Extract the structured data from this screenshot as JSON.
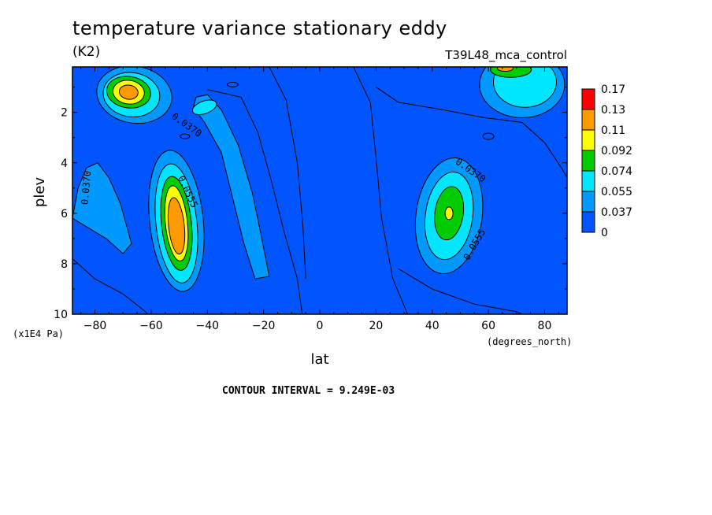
{
  "header": {
    "title": "temperature variance stationary eddy",
    "units": "(K2)",
    "dataset": "T39L48_mca_control"
  },
  "footer": {
    "contour_interval": "CONTOUR INTERVAL = 9.249E-03"
  },
  "colors": {
    "levels": [
      "#0055ff",
      "#0099ff",
      "#00e6ff",
      "#00cc00",
      "#ffff00",
      "#ff9900",
      "#ff0000"
    ],
    "background_fill": "#0055ff"
  },
  "chart_data": {
    "type": "heatmap",
    "title": "temperature variance stationary eddy",
    "xlabel": "lat",
    "xlabel_units": "(degrees_north)",
    "ylabel": "plev",
    "ylabel_units": "(x1E4 Pa)",
    "xlim": [
      -88,
      88
    ],
    "ylim": [
      10,
      0.2
    ],
    "x_ticks": [
      -80,
      -60,
      -40,
      -20,
      0,
      20,
      40,
      60,
      80
    ],
    "x_tick_labels": [
      "−80",
      "−60",
      "−40",
      "−20",
      "0",
      "20",
      "40",
      "60",
      "80"
    ],
    "y_ticks": [
      2,
      4,
      6,
      8,
      10
    ],
    "y_tick_labels": [
      "2",
      "4",
      "6",
      "8",
      "10"
    ],
    "colorbar": {
      "labels": [
        "0",
        "0.037",
        "0.055",
        "0.074",
        "0.092",
        "0.11",
        "0.13",
        "0.17"
      ]
    },
    "contour_labels": [
      {
        "text": "0.0370",
        "lat": -48,
        "plev": 2.6,
        "angle": 35
      },
      {
        "text": "0.0370",
        "lat": -82,
        "plev": 5.0,
        "angle": -85
      },
      {
        "text": "0.0555",
        "lat": -48,
        "plev": 5.2,
        "angle": 65
      },
      {
        "text": "0.0370",
        "lat": 53,
        "plev": 4.4,
        "angle": 35
      },
      {
        "text": "0.0555",
        "lat": 56,
        "plev": 7.3,
        "angle": -60
      }
    ],
    "features": [
      {
        "name": "SH lower max",
        "lat": -51,
        "plev": 6.5,
        "peak": 0.13
      },
      {
        "name": "SH upper max",
        "lat": -68,
        "plev": 1.2,
        "peak": 0.13
      },
      {
        "name": "NH lower max",
        "lat": 46,
        "plev": 6.0,
        "peak": 0.092
      },
      {
        "name": "NH upper max",
        "lat": 70,
        "plev": 0.3,
        "peak": 0.13
      }
    ]
  }
}
